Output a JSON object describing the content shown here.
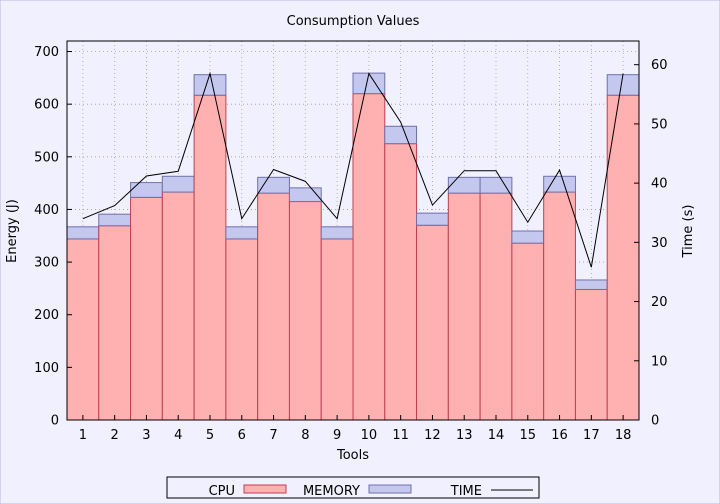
{
  "chart_data": {
    "type": "bar",
    "title": "Consumption Values",
    "xlabel": "Tools",
    "ylabel": "Energy (J)",
    "y2label": "Time (s)",
    "categories": [
      "1",
      "2",
      "3",
      "4",
      "5",
      "6",
      "7",
      "8",
      "9",
      "10",
      "11",
      "12",
      "13",
      "14",
      "15",
      "16",
      "17",
      "18"
    ],
    "ylim": [
      0,
      720
    ],
    "y2lim": [
      0,
      64
    ],
    "yticks": [
      0,
      100,
      200,
      300,
      400,
      500,
      600,
      700
    ],
    "y2ticks": [
      0,
      10,
      20,
      30,
      40,
      50,
      60
    ],
    "stacked": true,
    "grid": true,
    "legend_position": "bottom",
    "series": [
      {
        "name": "CPU",
        "axis": "left",
        "kind": "bar",
        "values": [
          344,
          369,
          423,
          433,
          617,
          344,
          431,
          415,
          344,
          620,
          525,
          370,
          431,
          431,
          336,
          433,
          248,
          617
        ],
        "color": "#ffb0b0",
        "edge": "#c04050"
      },
      {
        "name": "MEMORY",
        "axis": "left",
        "kind": "bar",
        "values": [
          23,
          22,
          28,
          30,
          39,
          23,
          30,
          26,
          23,
          39,
          33,
          23,
          30,
          30,
          23,
          30,
          18,
          39
        ],
        "color": "#c4c8ee",
        "edge": "#7070a8"
      },
      {
        "name": "TIME",
        "axis": "right",
        "kind": "line",
        "values": [
          34,
          36.2,
          41.2,
          42,
          58.5,
          34,
          42.3,
          40.3,
          34,
          58.5,
          50.3,
          36.3,
          42.1,
          42.1,
          33.4,
          42.2,
          25.8,
          58.5
        ],
        "color": "#000000"
      }
    ]
  }
}
